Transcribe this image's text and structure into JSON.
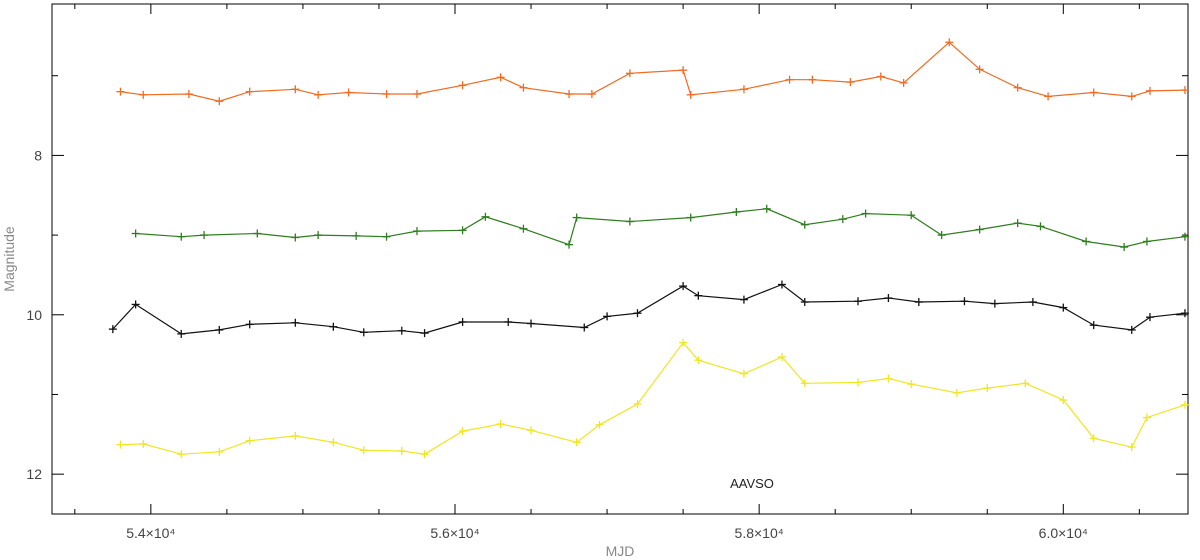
{
  "chart_data": {
    "type": "line",
    "xlabel": "MJD",
    "ylabel": "Magnitude",
    "annotation": "AAVSO",
    "xlim": [
      53350,
      60820
    ],
    "ylim": [
      12.5,
      6.1
    ],
    "y_inverted": true,
    "grid": false,
    "x_major_ticks": [
      54000,
      56000,
      58000,
      60000
    ],
    "x_tick_labels": [
      "5.4×10⁴",
      "5.6×10⁴",
      "5.8×10⁴",
      "6.0×10⁴"
    ],
    "y_major_ticks": [
      8,
      10,
      12
    ],
    "y_tick_labels": [
      "8",
      "10",
      "12"
    ],
    "series": [
      {
        "color": "#f26b21",
        "points": [
          [
            53800,
            7.2
          ],
          [
            53950,
            7.24
          ],
          [
            54250,
            7.23
          ],
          [
            54450,
            7.32
          ],
          [
            54650,
            7.2
          ],
          [
            54950,
            7.17
          ],
          [
            55100,
            7.24
          ],
          [
            55300,
            7.21
          ],
          [
            55550,
            7.23
          ],
          [
            55750,
            7.23
          ],
          [
            56050,
            7.12
          ],
          [
            56300,
            7.02
          ],
          [
            56450,
            7.15
          ],
          [
            56750,
            7.23
          ],
          [
            56900,
            7.23
          ],
          [
            57150,
            6.97
          ],
          [
            57500,
            6.93
          ],
          [
            57550,
            7.24
          ],
          [
            57900,
            7.17
          ],
          [
            58200,
            7.05
          ],
          [
            58350,
            7.05
          ],
          [
            58600,
            7.08
          ],
          [
            58800,
            7.01
          ],
          [
            58950,
            7.09
          ],
          [
            59250,
            6.58
          ],
          [
            59450,
            6.92
          ],
          [
            59700,
            7.15
          ],
          [
            59900,
            7.26
          ],
          [
            60200,
            7.21
          ],
          [
            60450,
            7.26
          ],
          [
            60570,
            7.19
          ],
          [
            60800,
            7.18
          ]
        ]
      },
      {
        "color": "#2e7d1e",
        "points": [
          [
            53900,
            8.98
          ],
          [
            54200,
            9.02
          ],
          [
            54350,
            9.0
          ],
          [
            54700,
            8.98
          ],
          [
            54950,
            9.03
          ],
          [
            55100,
            9.0
          ],
          [
            55350,
            9.01
          ],
          [
            55550,
            9.02
          ],
          [
            55750,
            8.95
          ],
          [
            56050,
            8.94
          ],
          [
            56200,
            8.77
          ],
          [
            56450,
            8.92
          ],
          [
            56750,
            9.12
          ],
          [
            56800,
            8.78
          ],
          [
            57150,
            8.83
          ],
          [
            57550,
            8.78
          ],
          [
            57850,
            8.71
          ],
          [
            58050,
            8.67
          ],
          [
            58300,
            8.87
          ],
          [
            58550,
            8.8
          ],
          [
            58700,
            8.73
          ],
          [
            59000,
            8.75
          ],
          [
            59200,
            9.0
          ],
          [
            59450,
            8.93
          ],
          [
            59700,
            8.85
          ],
          [
            59850,
            8.89
          ],
          [
            60150,
            9.08
          ],
          [
            60400,
            9.15
          ],
          [
            60550,
            9.08
          ],
          [
            60800,
            9.02
          ]
        ]
      },
      {
        "color": "#111111",
        "points": [
          [
            53750,
            10.18
          ],
          [
            53900,
            9.87
          ],
          [
            54200,
            10.24
          ],
          [
            54450,
            10.19
          ],
          [
            54650,
            10.12
          ],
          [
            54950,
            10.1
          ],
          [
            55200,
            10.15
          ],
          [
            55400,
            10.22
          ],
          [
            55650,
            10.2
          ],
          [
            55800,
            10.23
          ],
          [
            56050,
            10.09
          ],
          [
            56350,
            10.09
          ],
          [
            56500,
            10.11
          ],
          [
            56850,
            10.16
          ],
          [
            57000,
            10.02
          ],
          [
            57200,
            9.98
          ],
          [
            57500,
            9.64
          ],
          [
            57600,
            9.76
          ],
          [
            57900,
            9.81
          ],
          [
            58150,
            9.62
          ],
          [
            58300,
            9.84
          ],
          [
            58650,
            9.83
          ],
          [
            58850,
            9.79
          ],
          [
            59050,
            9.84
          ],
          [
            59350,
            9.83
          ],
          [
            59550,
            9.86
          ],
          [
            59800,
            9.84
          ],
          [
            60000,
            9.91
          ],
          [
            60200,
            10.13
          ],
          [
            60450,
            10.19
          ],
          [
            60570,
            10.03
          ],
          [
            60800,
            9.98
          ]
        ]
      },
      {
        "color": "#f0e623",
        "points": [
          [
            53800,
            11.63
          ],
          [
            53950,
            11.62
          ],
          [
            54200,
            11.75
          ],
          [
            54450,
            11.72
          ],
          [
            54650,
            11.58
          ],
          [
            54950,
            11.52
          ],
          [
            55200,
            11.6
          ],
          [
            55400,
            11.7
          ],
          [
            55650,
            11.71
          ],
          [
            55800,
            11.75
          ],
          [
            56050,
            11.46
          ],
          [
            56300,
            11.37
          ],
          [
            56500,
            11.45
          ],
          [
            56800,
            11.6
          ],
          [
            56950,
            11.38
          ],
          [
            57200,
            11.12
          ],
          [
            57500,
            10.35
          ],
          [
            57600,
            10.57
          ],
          [
            57900,
            10.74
          ],
          [
            58150,
            10.53
          ],
          [
            58300,
            10.86
          ],
          [
            58650,
            10.85
          ],
          [
            58850,
            10.8
          ],
          [
            59000,
            10.87
          ],
          [
            59300,
            10.98
          ],
          [
            59500,
            10.92
          ],
          [
            59750,
            10.86
          ],
          [
            60000,
            11.07
          ],
          [
            60200,
            11.55
          ],
          [
            60450,
            11.66
          ],
          [
            60550,
            11.29
          ],
          [
            60800,
            11.13
          ]
        ]
      }
    ]
  }
}
